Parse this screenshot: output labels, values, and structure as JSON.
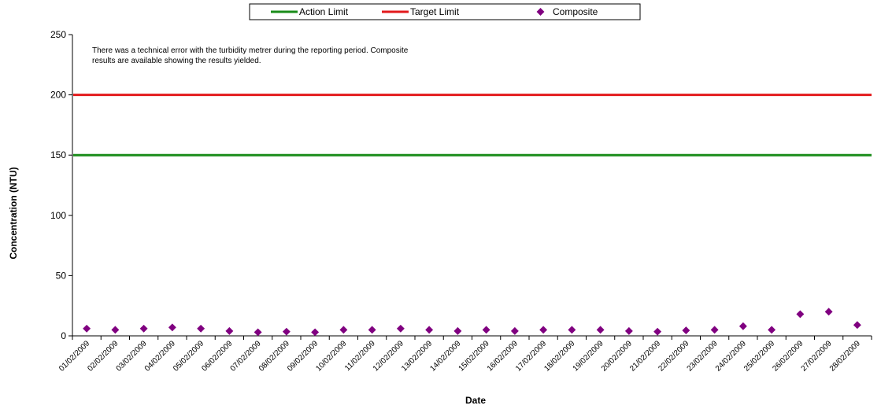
{
  "chart_data": {
    "type": "line",
    "xlabel": "Date",
    "ylabel": "Concentration (NTU)",
    "ylim": [
      0,
      250
    ],
    "yticks": [
      0,
      50,
      100,
      150,
      200,
      250
    ],
    "grid": false,
    "legend_position": "top-center",
    "annotation": {
      "line1": "There was a technical error with the turbidity metrer during the reporting period. Composite",
      "line2": "results are available showing the results yielded."
    },
    "categories": [
      "01/02/2009",
      "02/02/2009",
      "03/02/2009",
      "04/02/2009",
      "05/02/2009",
      "06/02/2009",
      "07/02/2009",
      "08/02/2009",
      "09/02/2009",
      "10/02/2009",
      "11/02/2009",
      "12/02/2009",
      "13/02/2009",
      "14/02/2009",
      "15/02/2009",
      "16/02/2009",
      "17/02/2009",
      "18/02/2009",
      "19/02/2009",
      "20/02/2009",
      "21/02/2009",
      "22/02/2009",
      "23/02/2009",
      "24/02/2009",
      "25/02/2009",
      "26/02/2009",
      "27/02/2009",
      "28/02/2009"
    ],
    "series": [
      {
        "name": "Action Limit",
        "kind": "line",
        "color": "#1a8c1a",
        "value": 150
      },
      {
        "name": "Target Limit",
        "kind": "line",
        "color": "#e31a1c",
        "value": 200
      },
      {
        "name": "Composite",
        "kind": "scatter",
        "color": "#800080",
        "values": [
          6,
          5,
          6,
          7,
          6,
          4,
          3,
          3.5,
          3,
          5,
          5,
          6,
          5,
          4,
          5,
          4,
          5,
          5,
          5,
          4,
          3.5,
          4.5,
          5,
          8,
          5,
          18,
          20,
          9
        ]
      }
    ]
  }
}
